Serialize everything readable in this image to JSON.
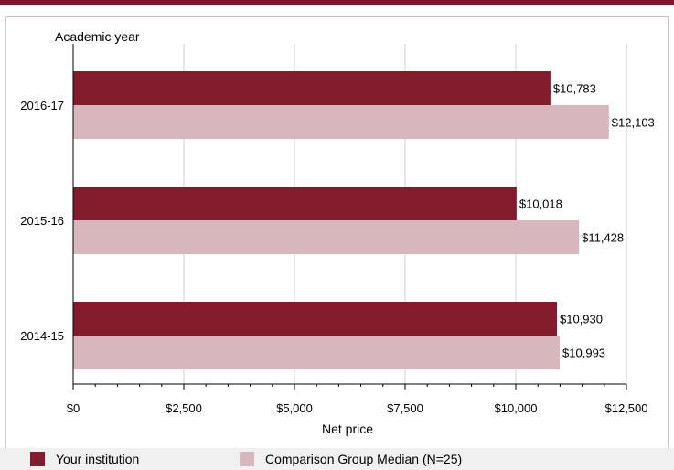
{
  "chart_data": {
    "type": "bar",
    "orientation": "horizontal",
    "y_axis_title": "Academic year",
    "xlabel": "Net price",
    "categories": [
      "2016-17",
      "2015-16",
      "2014-15"
    ],
    "series": [
      {
        "name": "Your institution",
        "values": [
          10783,
          10018,
          10930
        ],
        "labels": [
          "$10,783",
          "$10,018",
          "$10,930"
        ],
        "color": "#821c2d"
      },
      {
        "name": "Comparison Group Median (N=25)",
        "values": [
          12103,
          11428,
          10993
        ],
        "labels": [
          "$12,103",
          "$11,428",
          "$10,993"
        ],
        "color": "#d7b6bc"
      }
    ],
    "xlim": [
      0,
      12500
    ],
    "xticks": [
      0,
      2500,
      5000,
      7500,
      10000,
      12500
    ],
    "xtick_labels": [
      "$0",
      "$2,500",
      "$5,000",
      "$7,500",
      "$10,000",
      "$12,500"
    ],
    "grid": true,
    "legend_position": "bottom"
  },
  "colors": {
    "accent_rule": "#7b1a2a",
    "grid": "#d0d0d0"
  }
}
